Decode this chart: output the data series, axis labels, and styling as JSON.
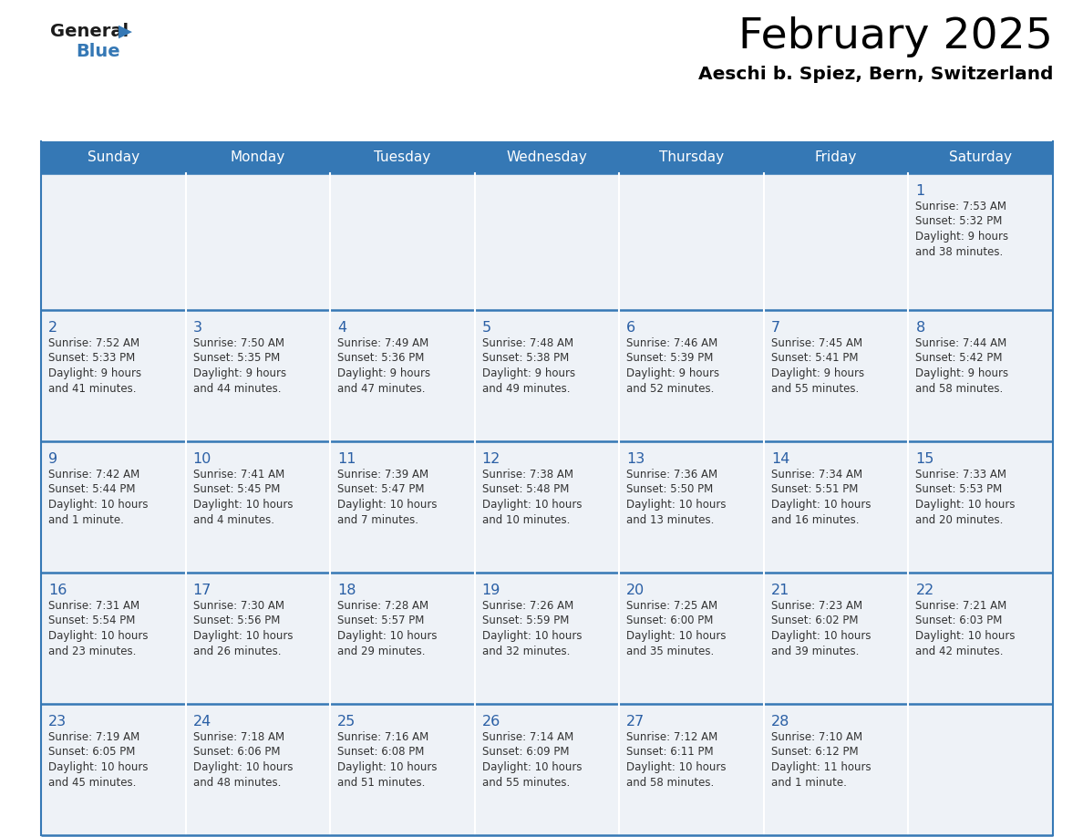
{
  "title": "February 2025",
  "subtitle": "Aeschi b. Spiez, Bern, Switzerland",
  "header_color": "#3578b5",
  "header_text_color": "#ffffff",
  "cell_bg": "#eef2f7",
  "day_number_color": "#2a5fa5",
  "text_color": "#333333",
  "line_color": "#3578b5",
  "days_of_week": [
    "Sunday",
    "Monday",
    "Tuesday",
    "Wednesday",
    "Thursday",
    "Friday",
    "Saturday"
  ],
  "weeks": [
    [
      null,
      null,
      null,
      null,
      null,
      null,
      {
        "day": "1",
        "sunrise": "7:53 AM",
        "sunset": "5:32 PM",
        "daylight": "9 hours",
        "daylight2": "and 38 minutes."
      }
    ],
    [
      {
        "day": "2",
        "sunrise": "7:52 AM",
        "sunset": "5:33 PM",
        "daylight": "9 hours",
        "daylight2": "and 41 minutes."
      },
      {
        "day": "3",
        "sunrise": "7:50 AM",
        "sunset": "5:35 PM",
        "daylight": "9 hours",
        "daylight2": "and 44 minutes."
      },
      {
        "day": "4",
        "sunrise": "7:49 AM",
        "sunset": "5:36 PM",
        "daylight": "9 hours",
        "daylight2": "and 47 minutes."
      },
      {
        "day": "5",
        "sunrise": "7:48 AM",
        "sunset": "5:38 PM",
        "daylight": "9 hours",
        "daylight2": "and 49 minutes."
      },
      {
        "day": "6",
        "sunrise": "7:46 AM",
        "sunset": "5:39 PM",
        "daylight": "9 hours",
        "daylight2": "and 52 minutes."
      },
      {
        "day": "7",
        "sunrise": "7:45 AM",
        "sunset": "5:41 PM",
        "daylight": "9 hours",
        "daylight2": "and 55 minutes."
      },
      {
        "day": "8",
        "sunrise": "7:44 AM",
        "sunset": "5:42 PM",
        "daylight": "9 hours",
        "daylight2": "and 58 minutes."
      }
    ],
    [
      {
        "day": "9",
        "sunrise": "7:42 AM",
        "sunset": "5:44 PM",
        "daylight": "10 hours",
        "daylight2": "and 1 minute."
      },
      {
        "day": "10",
        "sunrise": "7:41 AM",
        "sunset": "5:45 PM",
        "daylight": "10 hours",
        "daylight2": "and 4 minutes."
      },
      {
        "day": "11",
        "sunrise": "7:39 AM",
        "sunset": "5:47 PM",
        "daylight": "10 hours",
        "daylight2": "and 7 minutes."
      },
      {
        "day": "12",
        "sunrise": "7:38 AM",
        "sunset": "5:48 PM",
        "daylight": "10 hours",
        "daylight2": "and 10 minutes."
      },
      {
        "day": "13",
        "sunrise": "7:36 AM",
        "sunset": "5:50 PM",
        "daylight": "10 hours",
        "daylight2": "and 13 minutes."
      },
      {
        "day": "14",
        "sunrise": "7:34 AM",
        "sunset": "5:51 PM",
        "daylight": "10 hours",
        "daylight2": "and 16 minutes."
      },
      {
        "day": "15",
        "sunrise": "7:33 AM",
        "sunset": "5:53 PM",
        "daylight": "10 hours",
        "daylight2": "and 20 minutes."
      }
    ],
    [
      {
        "day": "16",
        "sunrise": "7:31 AM",
        "sunset": "5:54 PM",
        "daylight": "10 hours",
        "daylight2": "and 23 minutes."
      },
      {
        "day": "17",
        "sunrise": "7:30 AM",
        "sunset": "5:56 PM",
        "daylight": "10 hours",
        "daylight2": "and 26 minutes."
      },
      {
        "day": "18",
        "sunrise": "7:28 AM",
        "sunset": "5:57 PM",
        "daylight": "10 hours",
        "daylight2": "and 29 minutes."
      },
      {
        "day": "19",
        "sunrise": "7:26 AM",
        "sunset": "5:59 PM",
        "daylight": "10 hours",
        "daylight2": "and 32 minutes."
      },
      {
        "day": "20",
        "sunrise": "7:25 AM",
        "sunset": "6:00 PM",
        "daylight": "10 hours",
        "daylight2": "and 35 minutes."
      },
      {
        "day": "21",
        "sunrise": "7:23 AM",
        "sunset": "6:02 PM",
        "daylight": "10 hours",
        "daylight2": "and 39 minutes."
      },
      {
        "day": "22",
        "sunrise": "7:21 AM",
        "sunset": "6:03 PM",
        "daylight": "10 hours",
        "daylight2": "and 42 minutes."
      }
    ],
    [
      {
        "day": "23",
        "sunrise": "7:19 AM",
        "sunset": "6:05 PM",
        "daylight": "10 hours",
        "daylight2": "and 45 minutes."
      },
      {
        "day": "24",
        "sunrise": "7:18 AM",
        "sunset": "6:06 PM",
        "daylight": "10 hours",
        "daylight2": "and 48 minutes."
      },
      {
        "day": "25",
        "sunrise": "7:16 AM",
        "sunset": "6:08 PM",
        "daylight": "10 hours",
        "daylight2": "and 51 minutes."
      },
      {
        "day": "26",
        "sunrise": "7:14 AM",
        "sunset": "6:09 PM",
        "daylight": "10 hours",
        "daylight2": "and 55 minutes."
      },
      {
        "day": "27",
        "sunrise": "7:12 AM",
        "sunset": "6:11 PM",
        "daylight": "10 hours",
        "daylight2": "and 58 minutes."
      },
      {
        "day": "28",
        "sunrise": "7:10 AM",
        "sunset": "6:12 PM",
        "daylight": "11 hours",
        "daylight2": "and 1 minute."
      },
      null
    ]
  ]
}
